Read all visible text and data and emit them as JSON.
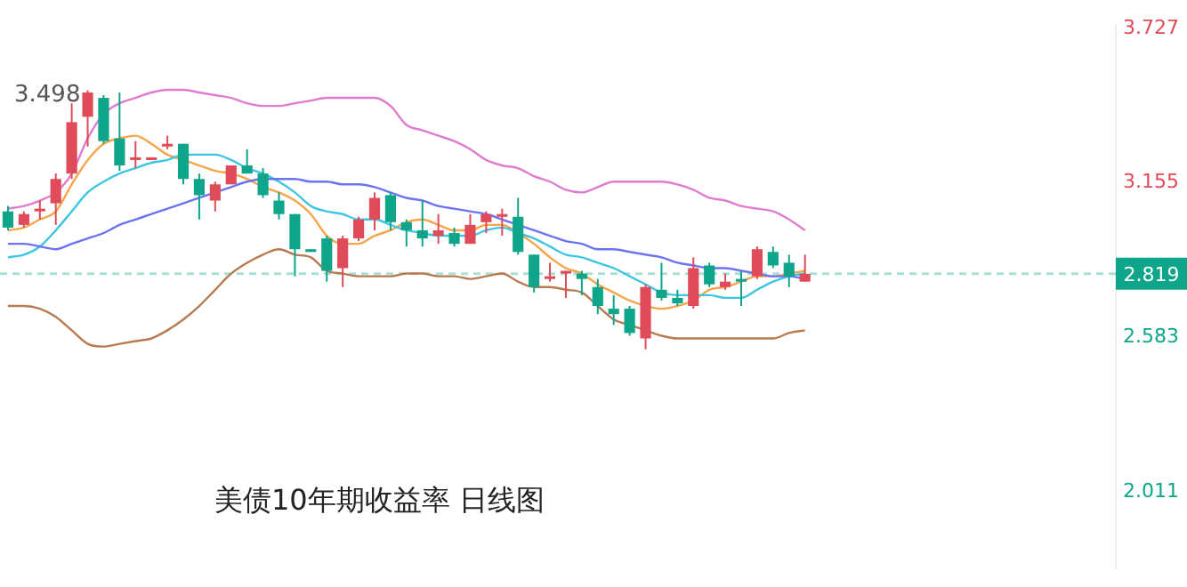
{
  "chart_data": {
    "type": "candlestick",
    "title": "美债10年期收益率 日线图",
    "tick_labels": "y",
    "ylim": [
      1.73,
      3.74
    ],
    "yticks": [
      2.011,
      2.583,
      3.155,
      3.727
    ],
    "categories": [
      null,
      null,
      null,
      null,
      null,
      null,
      null,
      null,
      null,
      null,
      null,
      null,
      null,
      null,
      null,
      null,
      null,
      null,
      null,
      null,
      null,
      null,
      null,
      null,
      null,
      null,
      null,
      null,
      null,
      null,
      null,
      null,
      null,
      null,
      null,
      null,
      null,
      null,
      null,
      null,
      null,
      null,
      null,
      null,
      null,
      null,
      null,
      null,
      null,
      null,
      null,
      null,
      null,
      null,
      null,
      null,
      null,
      null,
      null,
      null,
      null,
      null,
      null,
      null,
      null,
      null,
      null,
      null,
      null,
      null
    ],
    "ohlc": [
      [
        3.05,
        3.07,
        2.98,
        2.99
      ],
      [
        3.0,
        3.05,
        2.99,
        3.04
      ],
      [
        3.05,
        3.09,
        3.02,
        3.06
      ],
      [
        3.08,
        3.19,
        3.0,
        3.17
      ],
      [
        3.19,
        3.45,
        3.17,
        3.38
      ],
      [
        3.4,
        3.498,
        3.29,
        3.49
      ],
      [
        3.47,
        3.48,
        3.3,
        3.31
      ],
      [
        3.32,
        3.49,
        3.2,
        3.22
      ],
      [
        3.24,
        3.31,
        3.21,
        3.25
      ],
      [
        3.24,
        3.25,
        3.24,
        3.25
      ],
      [
        3.29,
        3.33,
        3.28,
        3.3
      ],
      [
        3.3,
        3.3,
        3.15,
        3.17
      ],
      [
        3.17,
        3.19,
        3.02,
        3.11
      ],
      [
        3.09,
        3.16,
        3.05,
        3.15
      ],
      [
        3.15,
        3.22,
        3.15,
        3.22
      ],
      [
        3.22,
        3.28,
        3.19,
        3.19
      ],
      [
        3.19,
        3.21,
        3.1,
        3.11
      ],
      [
        3.09,
        3.12,
        3.02,
        3.04
      ],
      [
        3.04,
        3.04,
        2.81,
        2.91
      ],
      [
        2.91,
        2.91,
        2.9,
        2.9
      ],
      [
        2.95,
        2.96,
        2.79,
        2.83
      ],
      [
        2.84,
        2.96,
        2.77,
        2.95
      ],
      [
        2.95,
        3.03,
        2.94,
        3.02
      ],
      [
        3.02,
        3.12,
        2.98,
        3.1
      ],
      [
        3.11,
        3.12,
        2.98,
        3.01
      ],
      [
        3.01,
        3.02,
        2.92,
        2.98
      ],
      [
        2.98,
        3.09,
        2.92,
        2.95
      ],
      [
        2.96,
        3.04,
        2.93,
        2.98
      ],
      [
        2.97,
        2.99,
        2.92,
        2.93
      ],
      [
        2.93,
        3.04,
        2.93,
        3.0
      ],
      [
        3.01,
        3.05,
        2.97,
        3.04
      ],
      [
        3.03,
        3.06,
        2.96,
        3.04
      ],
      [
        3.03,
        3.1,
        2.89,
        2.9
      ],
      [
        2.89,
        2.89,
        2.75,
        2.77
      ],
      [
        2.8,
        2.86,
        2.79,
        2.81
      ],
      [
        2.82,
        2.83,
        2.73,
        2.83
      ],
      [
        2.82,
        2.83,
        2.74,
        2.8
      ],
      [
        2.77,
        2.8,
        2.67,
        2.7
      ],
      [
        2.69,
        2.74,
        2.63,
        2.67
      ],
      [
        2.69,
        2.7,
        2.59,
        2.6
      ],
      [
        2.58,
        2.78,
        2.54,
        2.77
      ],
      [
        2.76,
        2.86,
        2.72,
        2.73
      ],
      [
        2.73,
        2.76,
        2.7,
        2.71
      ],
      [
        2.7,
        2.88,
        2.69,
        2.84
      ],
      [
        2.85,
        2.86,
        2.77,
        2.78
      ],
      [
        2.77,
        2.82,
        2.76,
        2.79
      ],
      [
        2.8,
        2.83,
        2.7,
        2.79
      ],
      [
        2.81,
        2.92,
        2.8,
        2.91
      ],
      [
        2.9,
        2.92,
        2.84,
        2.85
      ],
      [
        2.86,
        2.89,
        2.77,
        2.81
      ],
      [
        2.79,
        2.89,
        2.79,
        2.819
      ],
      null,
      null,
      null,
      null,
      null,
      null,
      null,
      null,
      null,
      null,
      null,
      null,
      null,
      null,
      null,
      null,
      null,
      null,
      null
    ],
    "colors": [
      "#0ea58a",
      "#e04b5a",
      "#e04b5a",
      "#e04b5a",
      "#e04b5a",
      "#e04b5a",
      "#0ea58a",
      "#0ea58a",
      "#e04b5a",
      "#e04b5a",
      "#e04b5a",
      "#0ea58a",
      "#0ea58a",
      "#e04b5a",
      "#e04b5a",
      "#0ea58a",
      "#0ea58a",
      "#0ea58a",
      "#0ea58a",
      "#0ea58a",
      "#0ea58a",
      "#e04b5a",
      "#e04b5a",
      "#e04b5a",
      "#0ea58a",
      "#0ea58a",
      "#0ea58a",
      "#e04b5a",
      "#0ea58a",
      "#e04b5a",
      "#e04b5a",
      "#e04b5a",
      "#0ea58a",
      "#0ea58a",
      "#e04b5a",
      "#e04b5a",
      "#0ea58a",
      "#0ea58a",
      "#0ea58a",
      "#0ea58a",
      "#e04b5a",
      "#0ea58a",
      "#0ea58a",
      "#e04b5a",
      "#0ea58a",
      "#e04b5a",
      "#0ea58a",
      "#e04b5a",
      "#0ea58a",
      "#0ea58a",
      "#e04b5a",
      null,
      null,
      null,
      null,
      null,
      null,
      null,
      null,
      null,
      null,
      null,
      null,
      null,
      null,
      null,
      null,
      null,
      null,
      null
    ],
    "series": [
      {
        "type": "line",
        "color": "#e07cd0",
        "values": [
          3.06,
          3.07,
          3.09,
          3.12,
          3.19,
          3.32,
          3.41,
          3.45,
          3.47,
          3.49,
          3.5,
          3.5,
          3.49,
          3.48,
          3.47,
          3.45,
          3.44,
          3.44,
          3.45,
          3.46,
          3.47,
          3.47,
          3.47,
          3.47,
          3.44,
          3.37,
          3.35,
          3.33,
          3.31,
          3.28,
          3.24,
          3.22,
          3.21,
          3.18,
          3.16,
          3.13,
          3.12,
          3.14,
          3.16,
          3.16,
          3.16,
          3.16,
          3.15,
          3.13,
          3.1,
          3.09,
          3.07,
          3.06,
          3.05,
          3.02,
          2.98,
          null,
          null,
          null,
          null,
          null,
          null,
          null,
          null,
          null,
          null,
          null,
          null,
          null,
          null,
          null,
          null,
          null,
          null,
          null
        ]
      },
      {
        "type": "line",
        "color": "#6b74f0",
        "values": [
          2.93,
          2.93,
          2.92,
          2.91,
          2.93,
          2.95,
          2.97,
          3.0,
          3.02,
          3.04,
          3.06,
          3.08,
          3.1,
          3.12,
          3.14,
          3.16,
          3.17,
          3.17,
          3.17,
          3.16,
          3.16,
          3.15,
          3.15,
          3.14,
          3.12,
          3.1,
          3.09,
          3.07,
          3.06,
          3.05,
          3.04,
          3.02,
          3.0,
          2.98,
          2.96,
          2.94,
          2.93,
          2.91,
          2.91,
          2.9,
          2.89,
          2.88,
          2.86,
          2.85,
          2.84,
          2.84,
          2.83,
          2.82,
          2.81,
          2.81,
          2.8,
          null,
          null,
          null,
          null,
          null,
          null,
          null,
          null,
          null,
          null,
          null,
          null,
          null,
          null,
          null,
          null,
          null,
          null,
          null
        ]
      },
      {
        "type": "line",
        "color": "#b87a50",
        "values": [
          2.7,
          2.7,
          2.69,
          2.66,
          2.61,
          2.56,
          2.55,
          2.56,
          2.57,
          2.58,
          2.61,
          2.65,
          2.7,
          2.76,
          2.82,
          2.86,
          2.89,
          2.91,
          2.89,
          2.88,
          2.83,
          2.82,
          2.81,
          2.81,
          2.81,
          2.82,
          2.82,
          2.81,
          2.81,
          2.8,
          2.81,
          2.82,
          2.79,
          2.77,
          2.77,
          2.76,
          2.75,
          2.7,
          2.65,
          2.63,
          2.61,
          2.59,
          2.58,
          2.58,
          2.58,
          2.58,
          2.58,
          2.58,
          2.58,
          2.6,
          2.61,
          null,
          null,
          null,
          null,
          null,
          null,
          null,
          null,
          null,
          null,
          null,
          null,
          null,
          null,
          null,
          null,
          null,
          null,
          null
        ]
      },
      {
        "type": "line",
        "color": "#3dc6e0",
        "values": [
          2.88,
          2.89,
          2.92,
          2.98,
          3.05,
          3.12,
          3.16,
          3.19,
          3.21,
          3.23,
          3.24,
          3.26,
          3.26,
          3.26,
          3.24,
          3.21,
          3.19,
          3.16,
          3.12,
          3.07,
          3.05,
          3.04,
          3.02,
          3.02,
          3.0,
          2.98,
          2.97,
          2.96,
          2.96,
          2.96,
          2.98,
          2.99,
          2.97,
          2.95,
          2.92,
          2.89,
          2.88,
          2.86,
          2.84,
          2.81,
          2.78,
          2.75,
          2.74,
          2.74,
          2.74,
          2.73,
          2.73,
          2.76,
          2.79,
          2.81,
          2.82,
          null,
          null,
          null,
          null,
          null,
          null,
          null,
          null,
          null,
          null,
          null,
          null,
          null,
          null,
          null,
          null,
          null,
          null,
          null
        ]
      },
      {
        "type": "line",
        "color": "#f7a54a",
        "values": [
          2.98,
          2.99,
          3.02,
          3.05,
          3.15,
          3.24,
          3.3,
          3.32,
          3.33,
          3.3,
          3.26,
          3.24,
          3.22,
          3.2,
          3.19,
          3.17,
          3.14,
          3.12,
          3.09,
          3.04,
          2.96,
          2.93,
          2.93,
          2.96,
          2.98,
          3.01,
          3.02,
          3.0,
          2.98,
          2.98,
          3.0,
          3.0,
          2.97,
          2.93,
          2.88,
          2.84,
          2.82,
          2.78,
          2.75,
          2.72,
          2.7,
          2.69,
          2.7,
          2.72,
          2.76,
          2.77,
          2.79,
          2.81,
          2.81,
          2.82,
          2.83,
          null,
          null,
          null,
          null,
          null,
          null,
          null,
          null,
          null,
          null,
          null,
          null,
          null,
          null,
          null,
          null,
          null,
          null,
          null
        ]
      }
    ],
    "ref_lines": [
      {
        "axis": "y",
        "value": 2.819,
        "label": "2.819",
        "color": "#0ea58a",
        "line_style": "dashed"
      }
    ],
    "annotations": [
      "3.498"
    ]
  }
}
